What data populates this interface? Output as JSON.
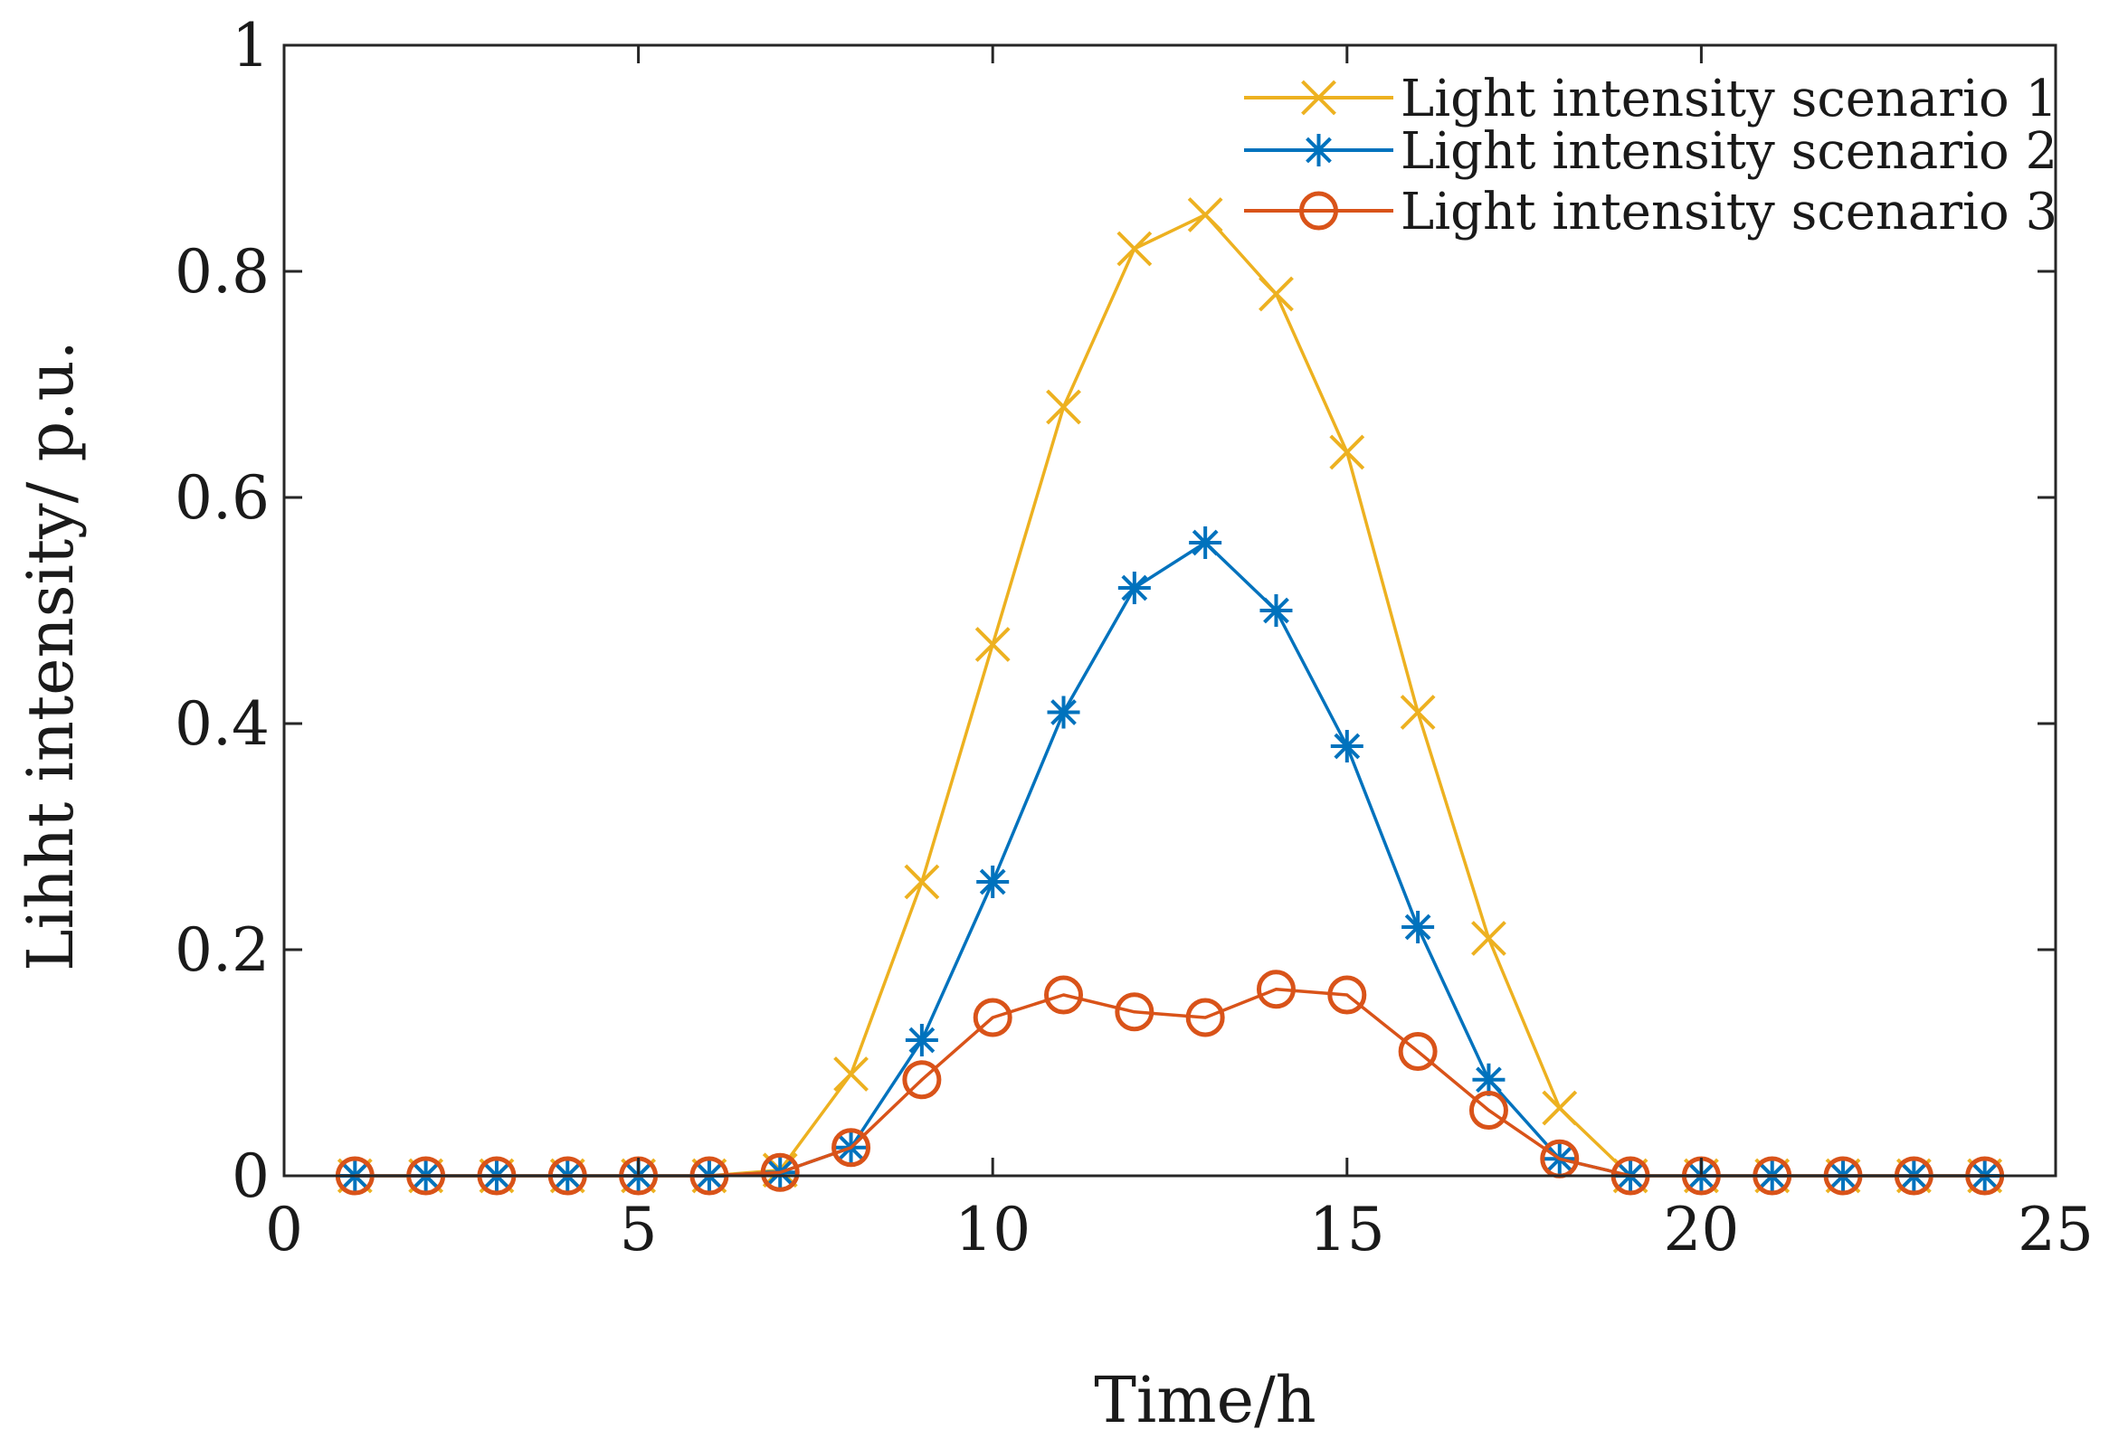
{
  "chart_data": {
    "type": "line",
    "title": "",
    "xlabel": "Time/h",
    "ylabel": "Lihht intensity/ p.u.",
    "xlim": [
      0,
      25
    ],
    "ylim": [
      0,
      1
    ],
    "xticks": [
      0,
      5,
      10,
      15,
      20,
      25
    ],
    "yticks": [
      0,
      0.2,
      0.4,
      0.6,
      0.8,
      1
    ],
    "xtick_labels": [
      "0",
      "5",
      "10",
      "15",
      "20",
      "25"
    ],
    "ytick_labels": [
      "0",
      "0.2",
      "0.4",
      "0.6",
      "0.8",
      "1"
    ],
    "grid": false,
    "legend_position": "top-right",
    "x": [
      1,
      2,
      3,
      4,
      5,
      6,
      7,
      8,
      9,
      10,
      11,
      12,
      13,
      14,
      15,
      16,
      17,
      18,
      19,
      20,
      21,
      22,
      23,
      24
    ],
    "series": [
      {
        "name": "Light intensity scenario 1",
        "color": "#EDB120",
        "marker": "x",
        "values": [
          0,
          0,
          0,
          0,
          0,
          0,
          0.005,
          0.09,
          0.26,
          0.47,
          0.68,
          0.82,
          0.85,
          0.78,
          0.64,
          0.41,
          0.21,
          0.06,
          0,
          0,
          0,
          0,
          0,
          0
        ]
      },
      {
        "name": "Light intensity scenario 2",
        "color": "#0072BD",
        "marker": "asterisk",
        "values": [
          0,
          0,
          0,
          0,
          0,
          0,
          0.003,
          0.025,
          0.12,
          0.26,
          0.41,
          0.52,
          0.56,
          0.5,
          0.38,
          0.22,
          0.085,
          0.015,
          0,
          0,
          0,
          0,
          0,
          0
        ]
      },
      {
        "name": "Light intensity scenario 3",
        "color": "#D95319",
        "marker": "circle",
        "values": [
          0,
          0,
          0,
          0,
          0,
          0,
          0.003,
          0.025,
          0.085,
          0.14,
          0.16,
          0.145,
          0.14,
          0.165,
          0.16,
          0.11,
          0.058,
          0.015,
          0,
          0,
          0,
          0,
          0,
          0
        ]
      }
    ]
  }
}
